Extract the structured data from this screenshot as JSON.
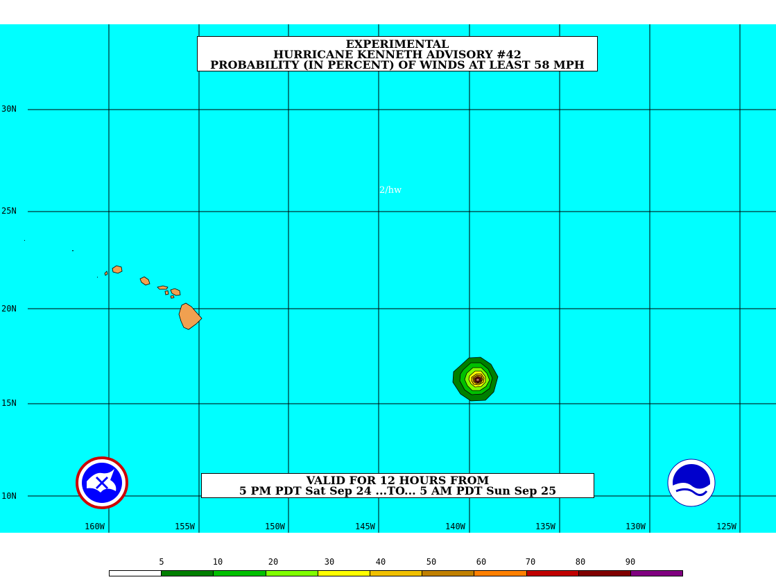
{
  "title": {
    "line1": "EXPERIMENTAL",
    "line2": "HURRICANE KENNETH ADVISORY #42",
    "line3": "PROBABILITY (IN PERCENT) OF WINDS AT LEAST 58 MPH"
  },
  "valid": {
    "line1": "VALID FOR 12 HOURS FROM",
    "line2": "5 PM PDT Sat Sep 24 ...TO... 5 AM PDT Sun Sep 25"
  },
  "note": "2/hw",
  "latitude_labels": [
    "30N",
    "25N",
    "20N",
    "15N",
    "10N"
  ],
  "longitude_labels": [
    "160W",
    "155W",
    "150W",
    "145W",
    "140W",
    "135W",
    "130W",
    "125W"
  ],
  "legend": {
    "labels": [
      "5",
      "10",
      "20",
      "30",
      "40",
      "50",
      "60",
      "70",
      "80",
      "90"
    ],
    "colors": [
      "#ffffff",
      "#007f00",
      "#00c000",
      "#80ff00",
      "#ffff00",
      "#f0c000",
      "#c08000",
      "#ff8000",
      "#c00000",
      "#800000",
      "#800080"
    ]
  },
  "colors": {
    "ocean": "#00ffff",
    "land": "#f0a050",
    "grid": "#000000"
  },
  "logos": {
    "left": "NATIONAL WEATHER SERVICE",
    "right": "NOAA"
  }
}
